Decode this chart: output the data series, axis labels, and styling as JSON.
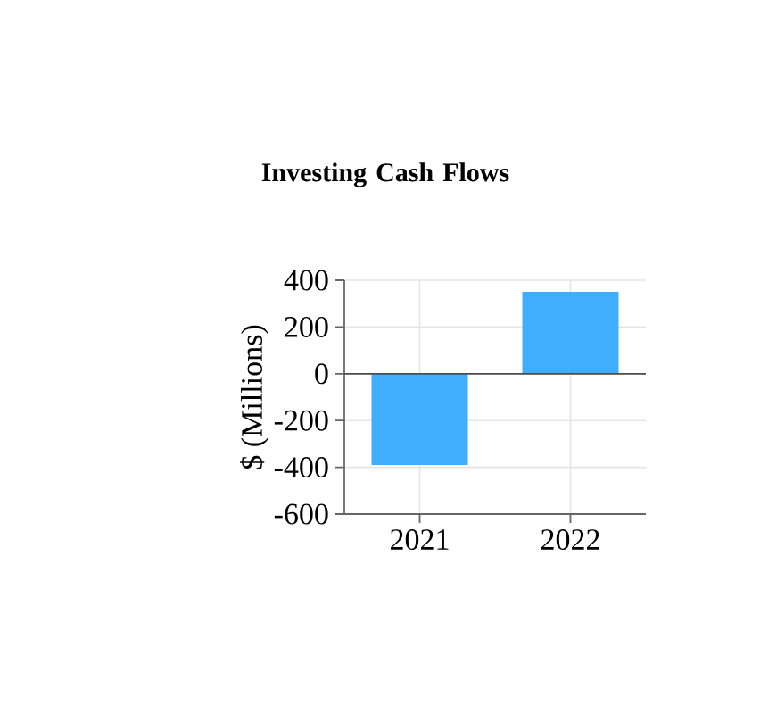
{
  "chart_data": {
    "type": "bar",
    "title": "Investing Cash Flows",
    "ylabel": "$ (Millions)",
    "categories": [
      "2021",
      "2022"
    ],
    "values": [
      -390,
      350
    ],
    "color": "#40aefc",
    "ylim": [
      -600,
      400
    ],
    "yticks": [
      -600,
      -400,
      -200,
      0,
      200,
      400
    ],
    "grid": true
  }
}
